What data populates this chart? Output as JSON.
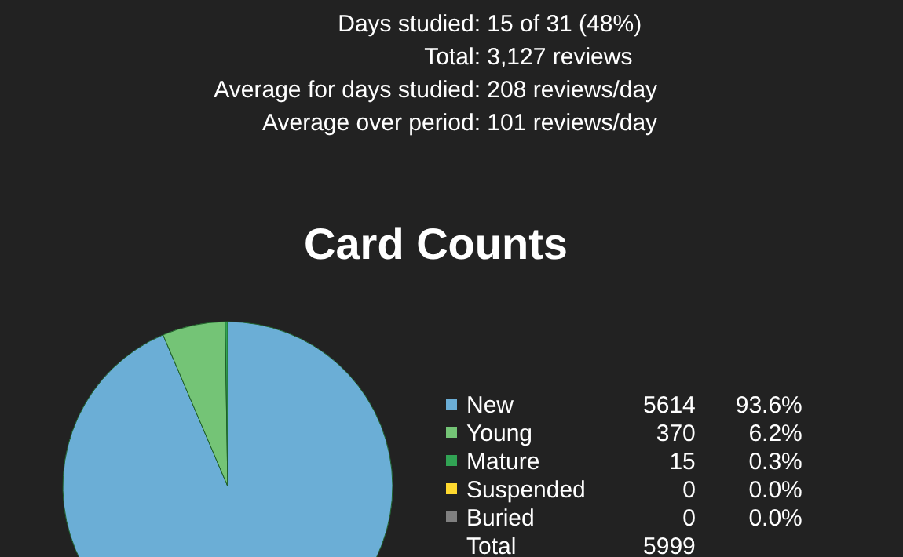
{
  "chart_data": {
    "type": "pie",
    "title": "Card Counts",
    "categories": [
      "New",
      "Young",
      "Mature",
      "Suspended",
      "Buried"
    ],
    "values": [
      5614,
      370,
      15,
      0,
      0
    ],
    "colors": [
      "#6baed6",
      "#74c476",
      "#31a354",
      "#ffd92f",
      "#808080"
    ],
    "value_labels": [
      "5614",
      "370",
      "15",
      "0",
      "0"
    ],
    "legend": "right",
    "annotations": [
      "Days studied: 15 of 31 (48%)",
      "Total: 3,127 reviews",
      "Average for days studied: 208 reviews/day",
      "Average over period: 101 reviews/day",
      {
        "text": "93.6%",
        "x": "New"
      },
      {
        "text": "6.2%",
        "x": "Young"
      },
      {
        "text": "0.3%",
        "x": "Mature"
      },
      {
        "text": "0.0%",
        "x": "Suspended"
      },
      {
        "text": "0.0%",
        "x": "Buried"
      },
      "Total\t5999"
    ]
  }
}
